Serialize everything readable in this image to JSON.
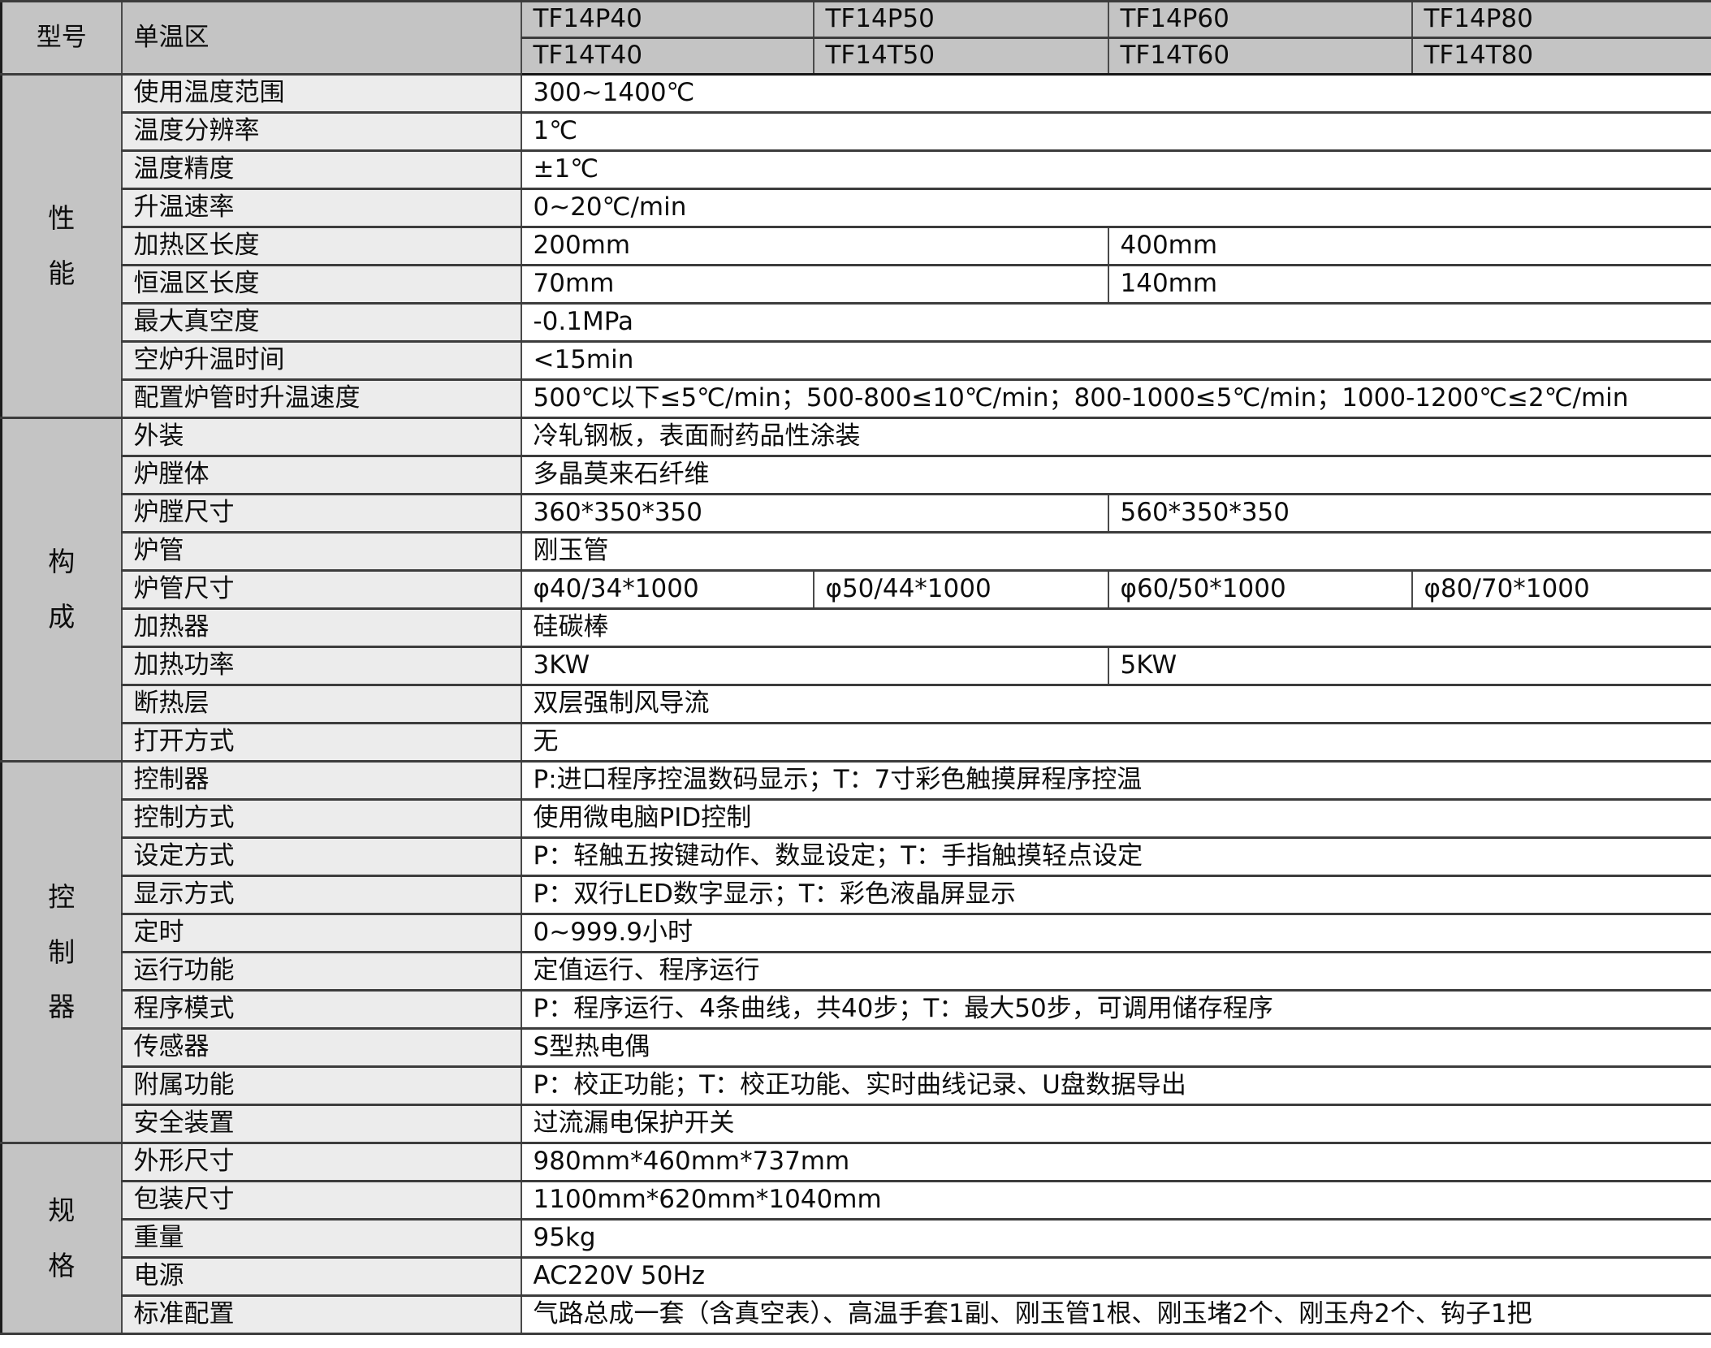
{
  "header": {
    "model_label": "型号",
    "zone_label": "单温区",
    "models_p": [
      "TF14P40",
      "TF14P50",
      "TF14P60",
      "TF14P80"
    ],
    "models_t": [
      "TF14T40",
      "TF14T50",
      "TF14T60",
      "TF14T80"
    ]
  },
  "colors": {
    "header_bg": "#c4c4c4",
    "section_bg": "#c4c4c4",
    "label_bg": "#ececec",
    "value_bg": "#ffffff",
    "border": "#3c3c3c"
  },
  "sections": [
    {
      "name": "性能",
      "rows": [
        {
          "label": "使用温度范围",
          "cells": [
            {
              "text": "300~1400℃",
              "span": 4
            }
          ]
        },
        {
          "label": "温度分辨率",
          "cells": [
            {
              "text": "1℃",
              "span": 4
            }
          ]
        },
        {
          "label": "温度精度",
          "cells": [
            {
              "text": "±1℃",
              "span": 4
            }
          ]
        },
        {
          "label": "升温速率",
          "cells": [
            {
              "text": "0~20℃/min",
              "span": 4
            }
          ]
        },
        {
          "label": "加热区长度",
          "cells": [
            {
              "text": "200mm",
              "span": 2
            },
            {
              "text": "400mm",
              "span": 2
            }
          ]
        },
        {
          "label": "恒温区长度",
          "cells": [
            {
              "text": "70mm",
              "span": 2
            },
            {
              "text": "140mm",
              "span": 2
            }
          ]
        },
        {
          "label": "最大真空度",
          "cells": [
            {
              "text": "-0.1MPa",
              "span": 4
            }
          ]
        },
        {
          "label": "空炉升温时间",
          "cells": [
            {
              "text": "<15min",
              "span": 4
            }
          ]
        },
        {
          "label": "配置炉管时升温速度",
          "cells": [
            {
              "text": "500℃以下≤5℃/min；500-800≤10℃/min；800-1000≤5℃/min；1000-1200℃≤2℃/min",
              "span": 4
            }
          ]
        }
      ]
    },
    {
      "name": "构成",
      "rows": [
        {
          "label": "外装",
          "cells": [
            {
              "text": "冷轧钢板，表面耐药品性涂装",
              "span": 4
            }
          ]
        },
        {
          "label": "炉膛体",
          "cells": [
            {
              "text": "多晶莫来石纤维",
              "span": 4
            }
          ]
        },
        {
          "label": "炉膛尺寸",
          "cells": [
            {
              "text": "360*350*350",
              "span": 2
            },
            {
              "text": "560*350*350",
              "span": 2
            }
          ]
        },
        {
          "label": "炉管",
          "cells": [
            {
              "text": "刚玉管",
              "span": 4
            }
          ]
        },
        {
          "label": "炉管尺寸",
          "cells": [
            {
              "text": "φ40/34*1000",
              "span": 1
            },
            {
              "text": "φ50/44*1000",
              "span": 1
            },
            {
              "text": "φ60/50*1000",
              "span": 1
            },
            {
              "text": "φ80/70*1000",
              "span": 1
            }
          ]
        },
        {
          "label": "加热器",
          "cells": [
            {
              "text": "硅碳棒",
              "span": 4
            }
          ]
        },
        {
          "label": "加热功率",
          "cells": [
            {
              "text": "3KW",
              "span": 2
            },
            {
              "text": "5KW",
              "span": 2
            }
          ]
        },
        {
          "label": "断热层",
          "cells": [
            {
              "text": "双层强制风导流",
              "span": 4
            }
          ]
        },
        {
          "label": "打开方式",
          "cells": [
            {
              "text": "无",
              "span": 4
            }
          ]
        }
      ]
    },
    {
      "name": "控制器",
      "rows": [
        {
          "label": "控制器",
          "cells": [
            {
              "text": "P:进口程序控温数码显示；T：7寸彩色触摸屏程序控温",
              "span": 4
            }
          ]
        },
        {
          "label": "控制方式",
          "cells": [
            {
              "text": "使用微电脑PID控制",
              "span": 4
            }
          ]
        },
        {
          "label": "设定方式",
          "cells": [
            {
              "text": "P：轻触五按键动作、数显设定；T：手指触摸轻点设定",
              "span": 4
            }
          ]
        },
        {
          "label": "显示方式",
          "cells": [
            {
              "text": "P：双行LED数字显示；T：彩色液晶屏显示",
              "span": 4
            }
          ]
        },
        {
          "label": "定时",
          "cells": [
            {
              "text": "0~999.9小时",
              "span": 4
            }
          ]
        },
        {
          "label": "运行功能",
          "cells": [
            {
              "text": "定值运行、程序运行",
              "span": 4
            }
          ]
        },
        {
          "label": "程序模式",
          "cells": [
            {
              "text": "P：程序运行、4条曲线，共40步；T：最大50步，可调用储存程序",
              "span": 4
            }
          ]
        },
        {
          "label": "传感器",
          "cells": [
            {
              "text": "S型热电偶",
              "span": 4
            }
          ]
        },
        {
          "label": "附属功能",
          "cells": [
            {
              "text": "P：校正功能；T：校正功能、实时曲线记录、U盘数据导出",
              "span": 4
            }
          ]
        },
        {
          "label": "安全装置",
          "cells": [
            {
              "text": "过流漏电保护开关",
              "span": 4
            }
          ]
        }
      ]
    },
    {
      "name": "规格",
      "rows": [
        {
          "label": "外形尺寸",
          "cells": [
            {
              "text": "980mm*460mm*737mm",
              "span": 4
            }
          ]
        },
        {
          "label": "包装尺寸",
          "cells": [
            {
              "text": "1100mm*620mm*1040mm",
              "span": 4
            }
          ]
        },
        {
          "label": "重量",
          "cells": [
            {
              "text": "95kg",
              "span": 4
            }
          ]
        },
        {
          "label": "电源",
          "cells": [
            {
              "text": "AC220V 50Hz",
              "span": 4
            }
          ]
        },
        {
          "label": "标准配置",
          "cells": [
            {
              "text": "气路总成一套（含真空表）、高温手套1副、刚玉管1根、刚玉堵2个、刚玉舟2个、钩子1把",
              "span": 4
            }
          ]
        }
      ]
    }
  ]
}
